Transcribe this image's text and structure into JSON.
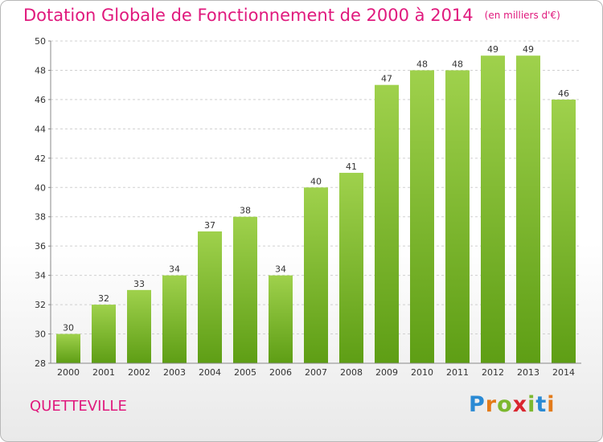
{
  "header": {
    "title": "Dotation Globale de Fonctionnement de 2000 à 2014",
    "unit": "(en milliers d'€)"
  },
  "footer": {
    "town": "QUETTEVILLE",
    "logo": "Proxiti"
  },
  "colors": {
    "accent": "#e0197d",
    "bar_top": "#9fd14c",
    "bar_bottom": "#5e9e15",
    "grid": "#d0d0d0"
  },
  "chart_data": {
    "type": "bar",
    "title": "Dotation Globale de Fonctionnement de 2000 à 2014",
    "subtitle": "(en milliers d'€)",
    "xlabel": "",
    "ylabel": "",
    "categories": [
      "2000",
      "2001",
      "2002",
      "2003",
      "2004",
      "2005",
      "2006",
      "2007",
      "2008",
      "2009",
      "2010",
      "2011",
      "2012",
      "2013",
      "2014"
    ],
    "values": [
      30,
      32,
      33,
      34,
      37,
      38,
      34,
      40,
      41,
      47,
      48,
      48,
      49,
      49,
      46
    ],
    "ylim": [
      28,
      50
    ],
    "yticks": [
      28,
      30,
      32,
      34,
      36,
      38,
      40,
      42,
      44,
      46,
      48,
      50
    ],
    "grid": true,
    "legend": "none"
  }
}
